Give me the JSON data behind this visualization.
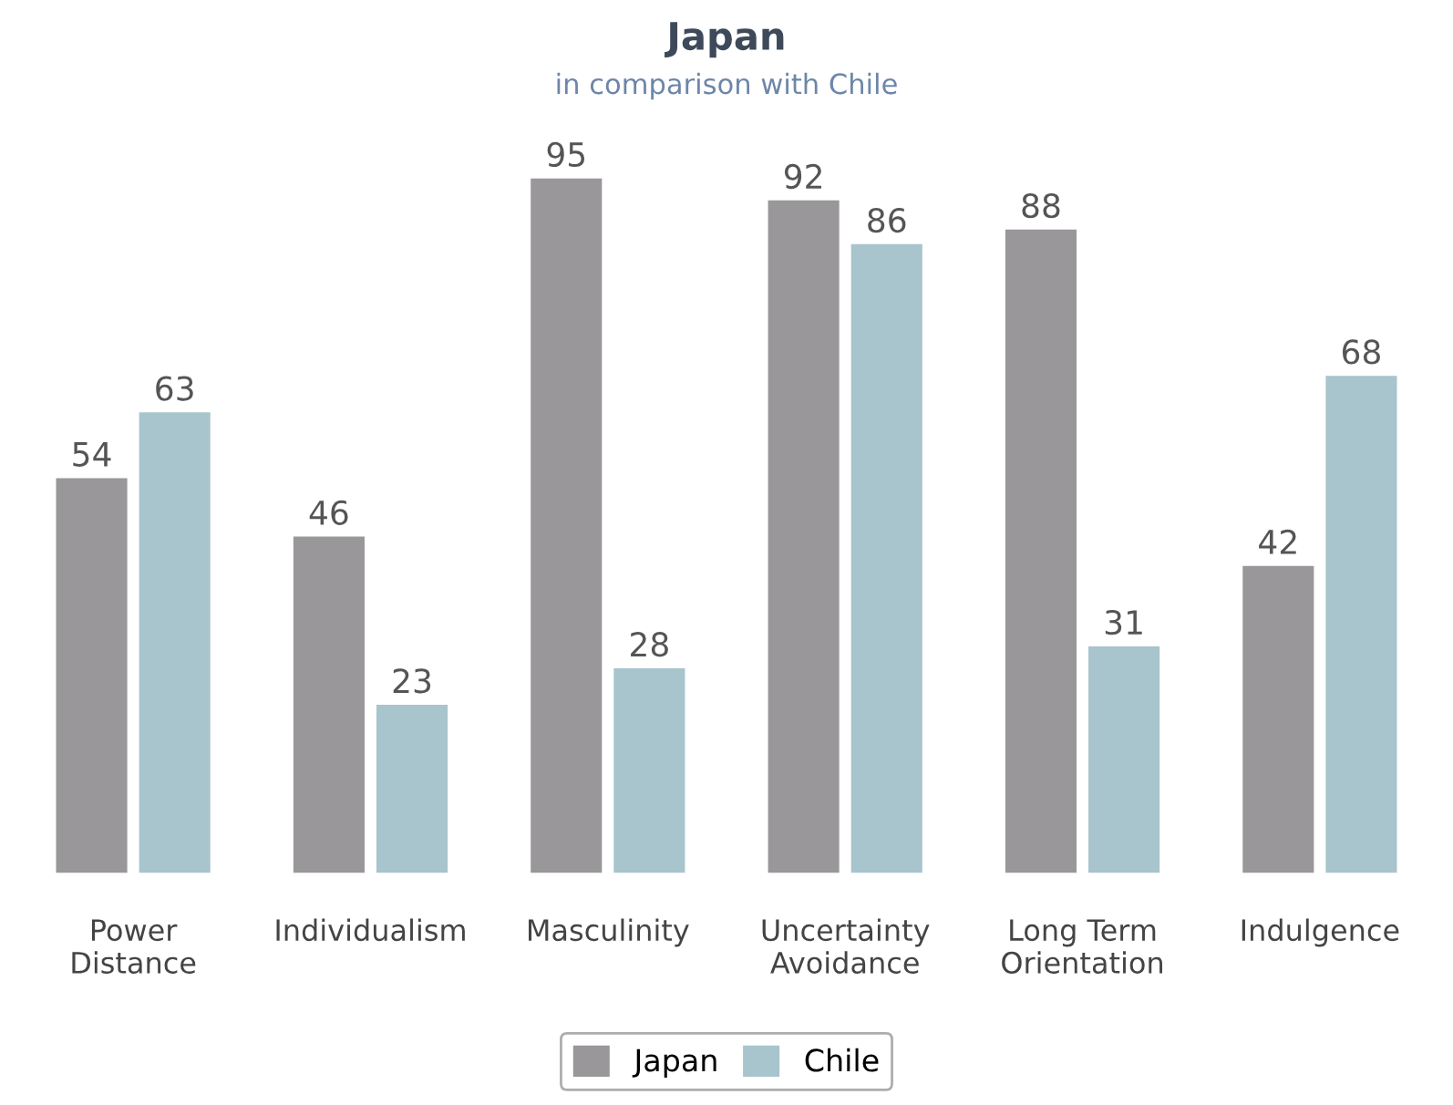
{
  "chart_data": {
    "type": "bar",
    "title": "Japan",
    "subtitle": "in comparison with Chile",
    "categories": [
      "Power\nDistance",
      "Individualism",
      "Masculinity",
      "Uncertainty\nAvoidance",
      "Long Term\nOrientation",
      "Indulgence"
    ],
    "series": [
      {
        "name": "Japan",
        "color": "#999799",
        "values": [
          54,
          46,
          95,
          92,
          88,
          42
        ]
      },
      {
        "name": "Chile",
        "color": "#a8c4cc",
        "values": [
          63,
          23,
          28,
          86,
          31,
          68
        ]
      }
    ],
    "data_labels": true,
    "legend": "bottom",
    "grid": false,
    "tick_labels": "x"
  }
}
